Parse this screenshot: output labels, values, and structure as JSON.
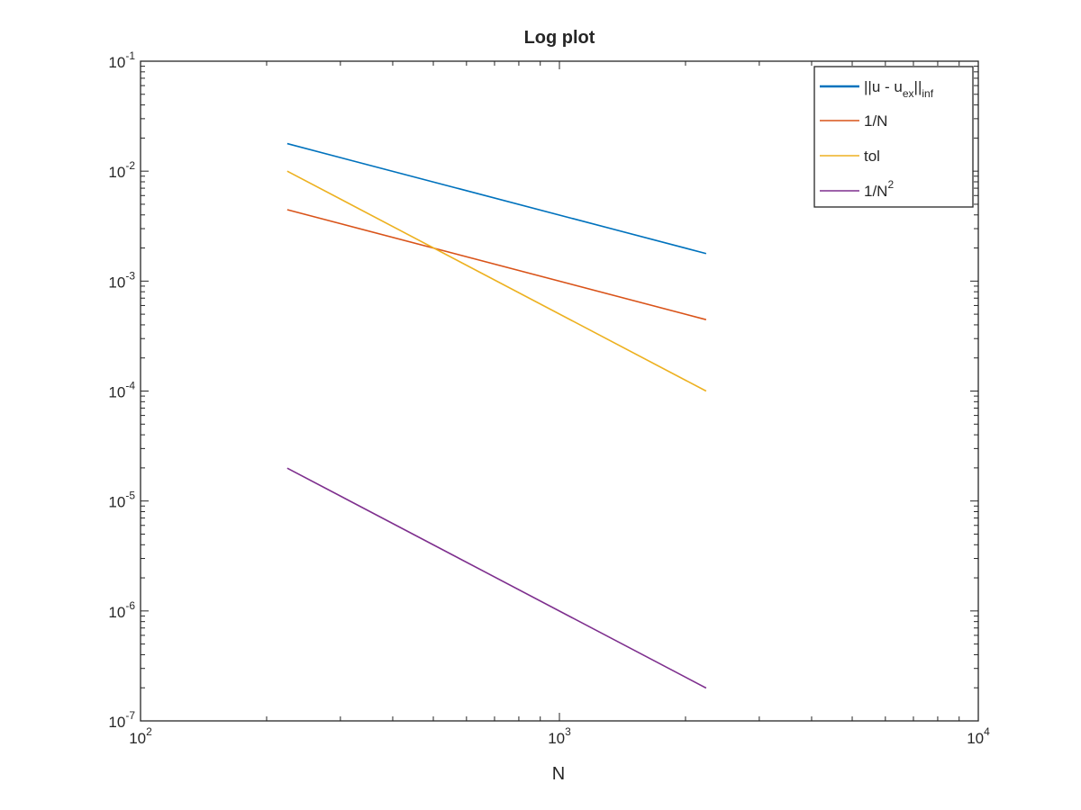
{
  "chart_data": {
    "type": "line",
    "title": "Log plot",
    "xlabel": "N",
    "ylabel": "",
    "xscale": "log",
    "yscale": "log",
    "xlim": [
      100,
      10000
    ],
    "ylim": [
      1e-07,
      0.1
    ],
    "grid": false,
    "legend_position": "top-right",
    "x_ticks": [
      {
        "value": 100,
        "base": "10",
        "exp": "2"
      },
      {
        "value": 1000,
        "base": "10",
        "exp": "3"
      },
      {
        "value": 10000,
        "base": "10",
        "exp": "4"
      }
    ],
    "y_ticks": [
      {
        "value": 1e-07,
        "base": "10",
        "exp": "-7"
      },
      {
        "value": 1e-06,
        "base": "10",
        "exp": "-6"
      },
      {
        "value": 1e-05,
        "base": "10",
        "exp": "-5"
      },
      {
        "value": 0.0001,
        "base": "10",
        "exp": "-4"
      },
      {
        "value": 0.001,
        "base": "10",
        "exp": "-3"
      },
      {
        "value": 0.01,
        "base": "10",
        "exp": "-2"
      },
      {
        "value": 0.1,
        "base": "10",
        "exp": "-1"
      }
    ],
    "series": [
      {
        "key": "error",
        "legend": {
          "pre": "||u - u",
          "sub": "ex",
          "mid": "||",
          "sub2": "inf"
        },
        "color": "#0072BD",
        "x": [
          224,
          2240
        ],
        "y": [
          0.0178,
          0.00178
        ]
      },
      {
        "key": "inv_n",
        "legend": {
          "pre": "1/N"
        },
        "color": "#D95319",
        "x": [
          224,
          2240
        ],
        "y": [
          0.00446,
          0.000446
        ]
      },
      {
        "key": "tol",
        "legend": {
          "pre": "tol"
        },
        "color": "#EDB120",
        "x": [
          224,
          2240
        ],
        "y": [
          0.01,
          0.0001
        ]
      },
      {
        "key": "inv_n2",
        "legend": {
          "pre": "1/N",
          "sup": "2"
        },
        "color": "#7E2F8E",
        "x": [
          224,
          2240
        ],
        "y": [
          1.99e-05,
          1.99e-07
        ]
      }
    ]
  }
}
